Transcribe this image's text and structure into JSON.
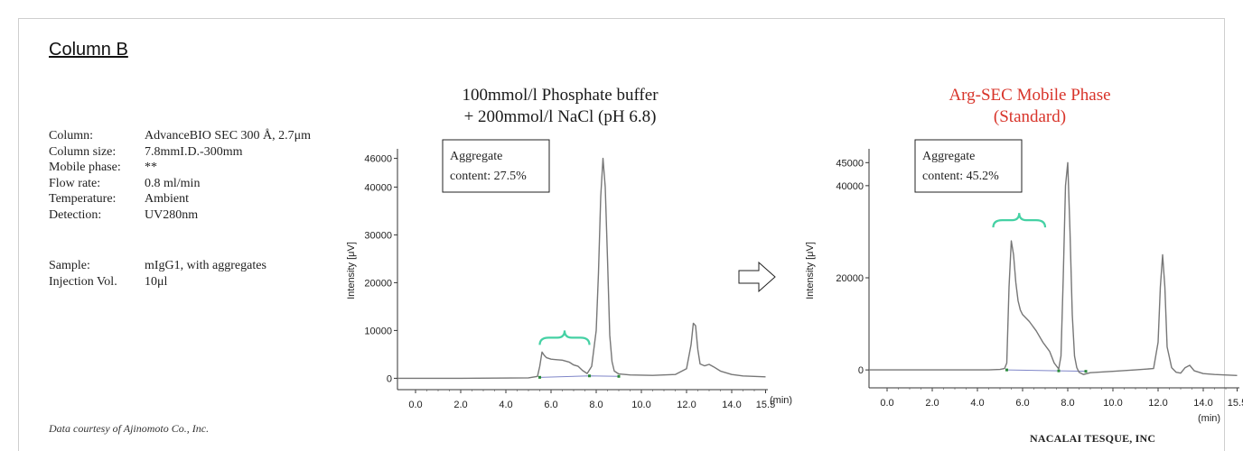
{
  "heading": "Column B",
  "conditions": [
    {
      "label": "Column:",
      "value": "AdvanceBIO SEC 300 Å, 2.7μm"
    },
    {
      "label": "Column size:",
      "value": "7.8mmI.D.-300mm"
    },
    {
      "label": "Mobile phase:",
      "value": "**"
    },
    {
      "label": "Flow rate:",
      "value": "0.8 ml/min"
    },
    {
      "label": "Temperature:",
      "value": "Ambient"
    },
    {
      "label": "Detection:",
      "value": "UV280nm"
    }
  ],
  "sample": [
    {
      "label": "Sample:",
      "value": "mIgG1, with aggregates"
    },
    {
      "label": "Injection Vol.",
      "value": "10μl"
    }
  ],
  "credit": "Data courtesy of Ajinomoto Co., Inc.",
  "brand": "NACALAI TESQUE, INC",
  "colors": {
    "trace": "#777777",
    "baseline": "#7f86c8",
    "brace": "#45d1a4",
    "title_red": "#d8342a"
  },
  "arrow_icon": "right-arrow-outline-icon",
  "chart_data": [
    {
      "type": "line",
      "title_lines": [
        "100mmol/l Phosphate buffer",
        "+ 200mmol/l NaCl (pH 6.8)"
      ],
      "xlabel": "(min)",
      "ylabel": "Intensity [μV]",
      "xlim": [
        -0.8,
        15.6
      ],
      "ylim": [
        -2000,
        48000
      ],
      "x_ticks": [
        "0.0",
        "2.0",
        "4.0",
        "6.0",
        "8.0",
        "10.0",
        "12.0",
        "14.0",
        "15.5"
      ],
      "x_tick_values": [
        0,
        2,
        4,
        6,
        8,
        10,
        12,
        14,
        15.5
      ],
      "y_ticks": [
        "46000",
        "40000",
        "30000",
        "20000",
        "10000",
        "0"
      ],
      "y_tick_values": [
        46000,
        40000,
        30000,
        20000,
        10000,
        0
      ],
      "annotation": {
        "line1": "Aggregate",
        "line2": "content: 27.5%"
      },
      "brace_range": [
        5.5,
        7.7
      ],
      "brace_level": 8500,
      "baseline_points": [
        [
          5.5,
          200
        ],
        [
          7.7,
          500
        ],
        [
          9.0,
          400
        ]
      ],
      "series": [
        {
          "x": [
            -0.8,
            2.0,
            5.0,
            5.4,
            5.5,
            5.6,
            5.7,
            5.8,
            6.0,
            6.2,
            6.5,
            6.8,
            7.0,
            7.2,
            7.4,
            7.6,
            7.8,
            8.0,
            8.1,
            8.2,
            8.3,
            8.4,
            8.5,
            8.6,
            8.7,
            8.8,
            9.0,
            9.5,
            10.5,
            11.5,
            12.0,
            12.2,
            12.3,
            12.4,
            12.5,
            12.6,
            12.8,
            13.0,
            13.2,
            13.5,
            14.0,
            14.5,
            15.5
          ],
          "y": [
            0,
            0,
            100,
            400,
            2500,
            5500,
            4800,
            4300,
            4000,
            3900,
            3800,
            3400,
            2800,
            2500,
            1600,
            1000,
            2500,
            10000,
            22000,
            38000,
            46000,
            40000,
            25000,
            9000,
            3500,
            1500,
            900,
            700,
            600,
            800,
            2000,
            7000,
            11500,
            11000,
            6000,
            3000,
            2600,
            2900,
            2400,
            1500,
            800,
            500,
            300
          ]
        }
      ]
    },
    {
      "type": "line",
      "title_lines": [
        "Arg-SEC Mobile Phase",
        "(Standard)"
      ],
      "xlabel": "(min)",
      "ylabel": "Intensity [μV]",
      "xlim": [
        -0.8,
        15.6
      ],
      "ylim": [
        -3500,
        48000
      ],
      "x_ticks": [
        "0.0",
        "2.0",
        "4.0",
        "6.0",
        "8.0",
        "10.0",
        "12.0",
        "14.0",
        "15.5"
      ],
      "x_tick_values": [
        0,
        2,
        4,
        6,
        8,
        10,
        12,
        14,
        15.5
      ],
      "y_ticks": [
        "45000",
        "40000",
        "20000",
        "0"
      ],
      "y_tick_values": [
        45000,
        40000,
        20000,
        0
      ],
      "annotation": {
        "line1": "Aggregate",
        "line2": "content: 45.2%"
      },
      "brace_range": [
        4.7,
        7.0
      ],
      "brace_level": 32500,
      "baseline_points": [
        [
          5.3,
          0
        ],
        [
          7.6,
          -200
        ],
        [
          8.8,
          -300
        ]
      ],
      "series": [
        {
          "x": [
            -0.8,
            2.0,
            4.5,
            5.0,
            5.2,
            5.3,
            5.4,
            5.5,
            5.6,
            5.7,
            5.8,
            5.9,
            6.0,
            6.3,
            6.6,
            6.9,
            7.2,
            7.4,
            7.6,
            7.7,
            7.8,
            7.9,
            8.0,
            8.1,
            8.2,
            8.3,
            8.4,
            8.5,
            8.7,
            9.0,
            10.0,
            11.0,
            11.8,
            12.0,
            12.1,
            12.2,
            12.3,
            12.4,
            12.6,
            12.8,
            13.0,
            13.2,
            13.4,
            13.6,
            14.0,
            14.5,
            15.5
          ],
          "y": [
            0,
            0,
            0,
            100,
            300,
            1500,
            18000,
            28000,
            25000,
            19000,
            15000,
            13000,
            12000,
            10500,
            8500,
            6000,
            4000,
            1500,
            200,
            3000,
            20000,
            40000,
            45000,
            30000,
            12000,
            3000,
            500,
            -500,
            -1000,
            -600,
            -300,
            0,
            300,
            6000,
            18000,
            25000,
            18000,
            5000,
            500,
            -500,
            -700,
            500,
            1000,
            -200,
            -800,
            -1000,
            -1200
          ]
        }
      ]
    }
  ]
}
